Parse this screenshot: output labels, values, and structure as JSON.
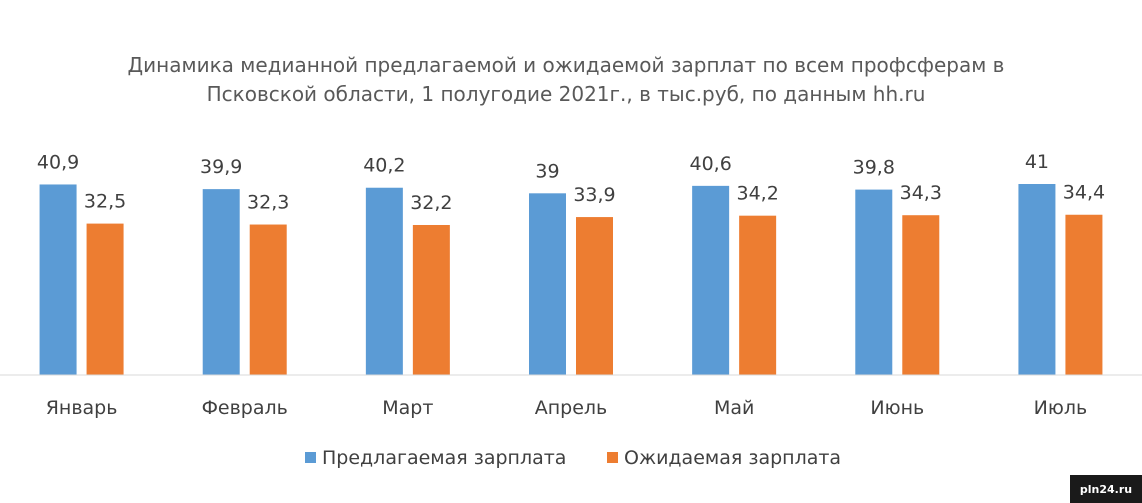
{
  "chart_data": {
    "type": "bar",
    "title": "Динамика медианной предлагаемой и ожидаемой зарплат по всем профсферам в Псковской области, 1 полугодие 2021г., в тыс.руб, по данным hh.ru",
    "title_lines": [
      "Динамика медианной предлагаемой и ожидаемой зарплат по всем профсферам в",
      "Псковской области, 1 полугодие 2021г., в тыс.руб, по данным hh.ru"
    ],
    "categories": [
      "Январь",
      "Февраль",
      "Март",
      "Апрель",
      "Май",
      "Июнь",
      "Июль"
    ],
    "series": [
      {
        "name": "Предлагаемая зарплата",
        "color": "#5b9bd5",
        "values": [
          40.9,
          39.9,
          40.2,
          39,
          40.6,
          39.8,
          41
        ],
        "labels": [
          "40,9",
          "39,9",
          "40,2",
          "39",
          "40,6",
          "39,8",
          "41"
        ]
      },
      {
        "name": "Ожидаемая зарплата",
        "color": "#ed7d31",
        "values": [
          32.5,
          32.3,
          32.2,
          33.9,
          34.2,
          34.3,
          34.4
        ],
        "labels": [
          "32,5",
          "32,3",
          "32,2",
          "33,9",
          "34,2",
          "34,3",
          "34,4"
        ]
      }
    ],
    "ylim": [
      0,
      41
    ],
    "grid": false,
    "legend_position": "bottom"
  },
  "watermark": "pln24.ru"
}
